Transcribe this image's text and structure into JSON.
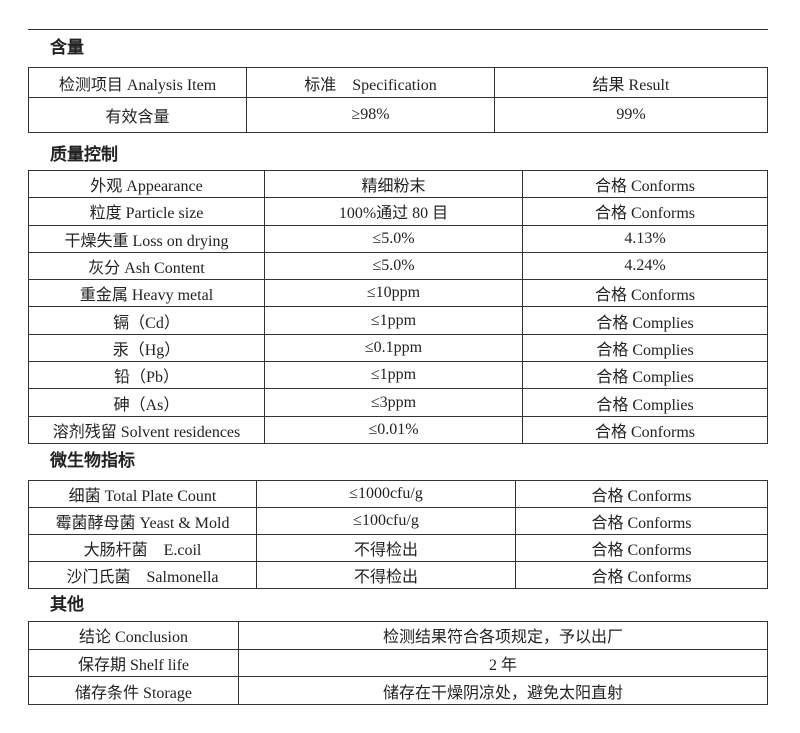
{
  "sections": [
    {
      "title": "含量",
      "header": [
        "检测项目 Analysis Item",
        "标准　Specification",
        "结果 Result"
      ],
      "rows": [
        [
          "有效含量",
          "≥98%",
          "99%"
        ]
      ]
    },
    {
      "title": "质量控制",
      "rows": [
        [
          "外观 Appearance",
          "精细粉末",
          "合格 Conforms"
        ],
        [
          "粒度 Particle size",
          "100%通过 80 目",
          "合格 Conforms"
        ],
        [
          "干燥失重 Loss on drying",
          "≤5.0%",
          "4.13%"
        ],
        [
          "灰分 Ash Content",
          "≤5.0%",
          "4.24%"
        ],
        [
          "重金属 Heavy metal",
          "≤10ppm",
          "合格 Conforms"
        ],
        [
          "镉（Cd）",
          "≤1ppm",
          "合格 Complies"
        ],
        [
          "汞（Hg）",
          "≤0.1ppm",
          "合格 Complies"
        ],
        [
          "铅（Pb）",
          "≤1ppm",
          "合格 Complies"
        ],
        [
          "砷（As）",
          "≤3ppm",
          "合格 Complies"
        ],
        [
          "溶剂残留 Solvent residences",
          "≤0.01%",
          "合格 Conforms"
        ]
      ]
    },
    {
      "title": "微生物指标",
      "rows": [
        [
          "细菌 Total Plate Count",
          "≤1000cfu/g",
          "合格 Conforms"
        ],
        [
          "霉菌酵母菌 Yeast & Mold",
          "≤100cfu/g",
          "合格 Conforms"
        ],
        [
          "大肠杆菌　E.coil",
          "不得检出",
          "合格 Conforms"
        ],
        [
          "沙门氏菌　Salmonella",
          "不得检出",
          "合格 Conforms"
        ]
      ]
    },
    {
      "title": "其他",
      "rows": [
        [
          "结论 Conclusion",
          "检测结果符合各项规定，予以出厂"
        ],
        [
          "保存期 Shelf life",
          "2 年"
        ],
        [
          "储存条件 Storage",
          "储存在干燥阴凉处，避免太阳直射"
        ]
      ]
    }
  ]
}
